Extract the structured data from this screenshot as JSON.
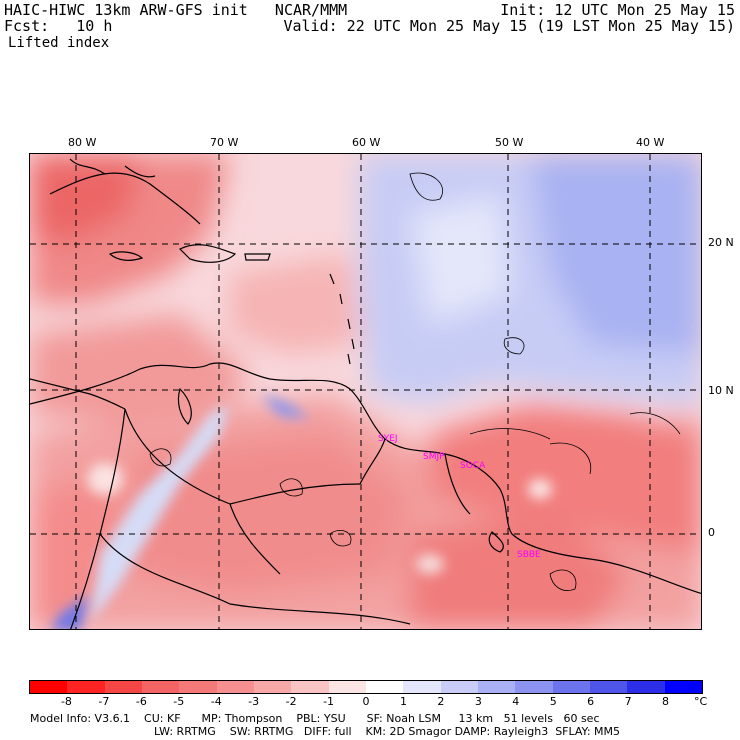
{
  "header": {
    "model_title": "HAIC-HIWC 13km ARW-GFS init   NCAR/MMM",
    "forecast": "Fcst:   10 h",
    "field": "Lifted index",
    "init": "Init: 12 UTC Mon 25 May 15",
    "valid": "Valid: 22 UTC Mon 25 May 15 (19 LST Mon 25 May 15)"
  },
  "map": {
    "lon_labels": [
      "80 W",
      "70 W",
      "60 W",
      "50 W",
      "40 W"
    ],
    "lat_labels": [
      "20 N",
      "10 N",
      "0"
    ],
    "stations": [
      "SYEJ",
      "SMJP",
      "SOCA",
      "SBBE"
    ],
    "colors": {
      "strong_negative": "#ef5555",
      "negative": "#f49494",
      "weak_negative": "#f8c4c4",
      "neutral": "#fbeeee",
      "weak_positive": "#dfe3fa",
      "positive": "#a8b4f4",
      "coast": "#000000",
      "station": "#ff00ff"
    }
  },
  "colorbar": {
    "ticks": [
      "-8",
      "-7",
      "-6",
      "-5",
      "-4",
      "-3",
      "-2",
      "-1",
      "0",
      "1",
      "2",
      "3",
      "4",
      "5",
      "6",
      "7",
      "8"
    ],
    "unit": "°C",
    "colors": [
      "#ff0000",
      "#ff2424",
      "#f54646",
      "#f46464",
      "#f47a7a",
      "#f69090",
      "#f7a8a8",
      "#f9c4c4",
      "#fbe4e4",
      "#ffffff",
      "#e4e6fb",
      "#c8ccf7",
      "#aab0f4",
      "#8c93f0",
      "#6c73ec",
      "#4e55e8",
      "#2c2ee8",
      "#0000ff"
    ]
  },
  "footer": {
    "line1": "Model Info: V3.6.1    CU: KF      MP: Thompson    PBL: YSU      SF: Noah LSM     13 km   51 levels   60 sec",
    "line2": "LW: RRTMG    SW: RRTMG   DIFF: full    KM: 2D Smagor DAMP: Rayleigh3  SFLAY: MM5"
  }
}
